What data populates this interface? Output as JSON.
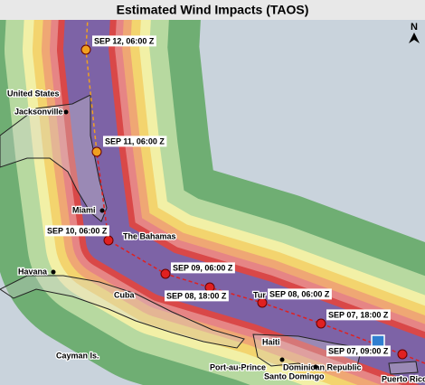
{
  "title": "Estimated Wind Impacts (TAOS)",
  "north_label": "N",
  "track_points": [
    {
      "label": "SEP 12, 06:00 Z"
    },
    {
      "label": "SEP 11, 06:00 Z"
    },
    {
      "label": "SEP 10, 06:00 Z"
    },
    {
      "label": "SEP 09, 06:00 Z"
    },
    {
      "label": "SEP 08, 18:00 Z"
    },
    {
      "label": "SEP 08, 06:00 Z"
    },
    {
      "label": "SEP 07, 18:00 Z"
    },
    {
      "label": "SEP 07, 09:00 Z"
    }
  ],
  "places": [
    {
      "label": "United States"
    },
    {
      "label": "Jacksonville"
    },
    {
      "label": "Miami"
    },
    {
      "label": "The Bahamas"
    },
    {
      "label": "Havana"
    },
    {
      "label": "Cuba"
    },
    {
      "label": "Tur"
    },
    {
      "label": "Cayman Is."
    },
    {
      "label": "Haiti"
    },
    {
      "label": "Port-au-Prince"
    },
    {
      "label": "Dominican Republic"
    },
    {
      "label": "Santo Domingo"
    },
    {
      "label": "Puerto Rico"
    }
  ]
}
